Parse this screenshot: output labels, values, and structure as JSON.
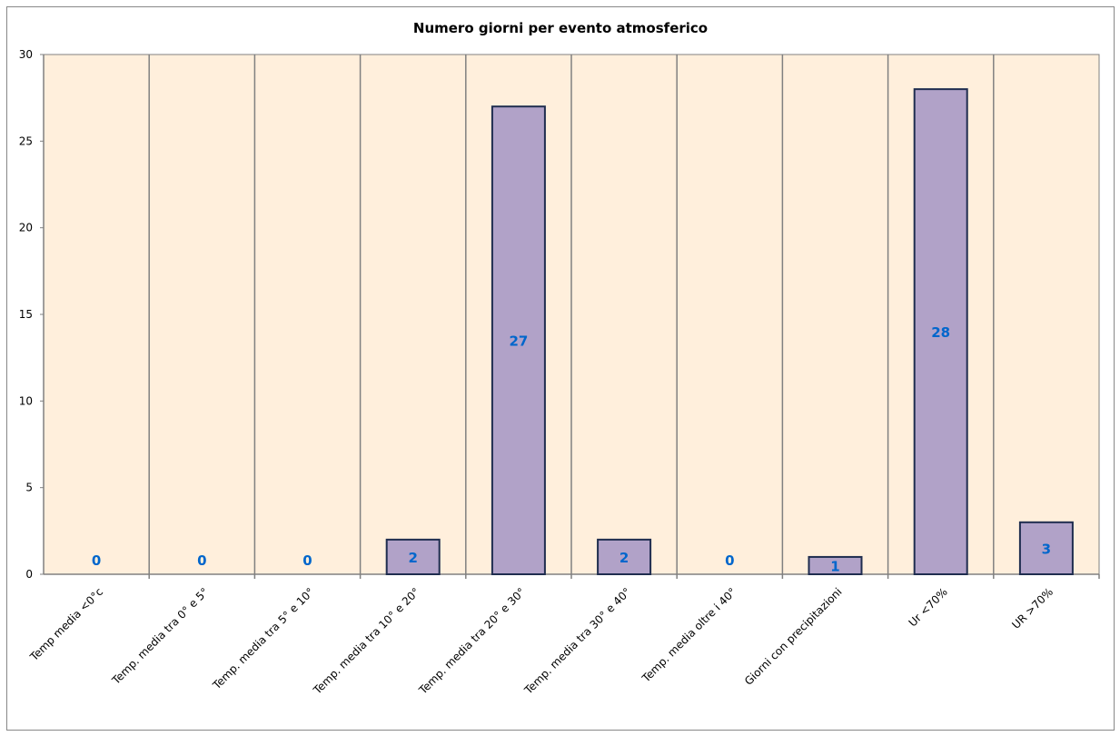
{
  "chart_data": {
    "type": "bar",
    "title": "Numero giorni  per evento atmosferico",
    "xlabel": "",
    "ylabel": "",
    "ylim": [
      0,
      30
    ],
    "yticks": [
      0,
      5,
      10,
      15,
      20,
      25,
      30
    ],
    "grid": "vertical",
    "categories": [
      "Temp media <0°c",
      "Temp. media tra 0° e 5°",
      "Temp. media tra 5° e 10°",
      "Temp. media tra 10° e 20°",
      "Temp. media tra 20° e 30°",
      "Temp. media tra 30° e 40°",
      "Temp. media oltre i 40°",
      "Giorni con precipitazioni",
      "Ur  <70%",
      "UR >70%"
    ],
    "values": [
      0,
      0,
      0,
      2,
      27,
      2,
      0,
      1,
      28,
      3
    ],
    "colors": {
      "bar": "#b1a2c8",
      "bar_border": "#1f2d4f",
      "plot_bg": "#ffefdc",
      "label": "#0066cc",
      "grid": "#808080"
    }
  }
}
